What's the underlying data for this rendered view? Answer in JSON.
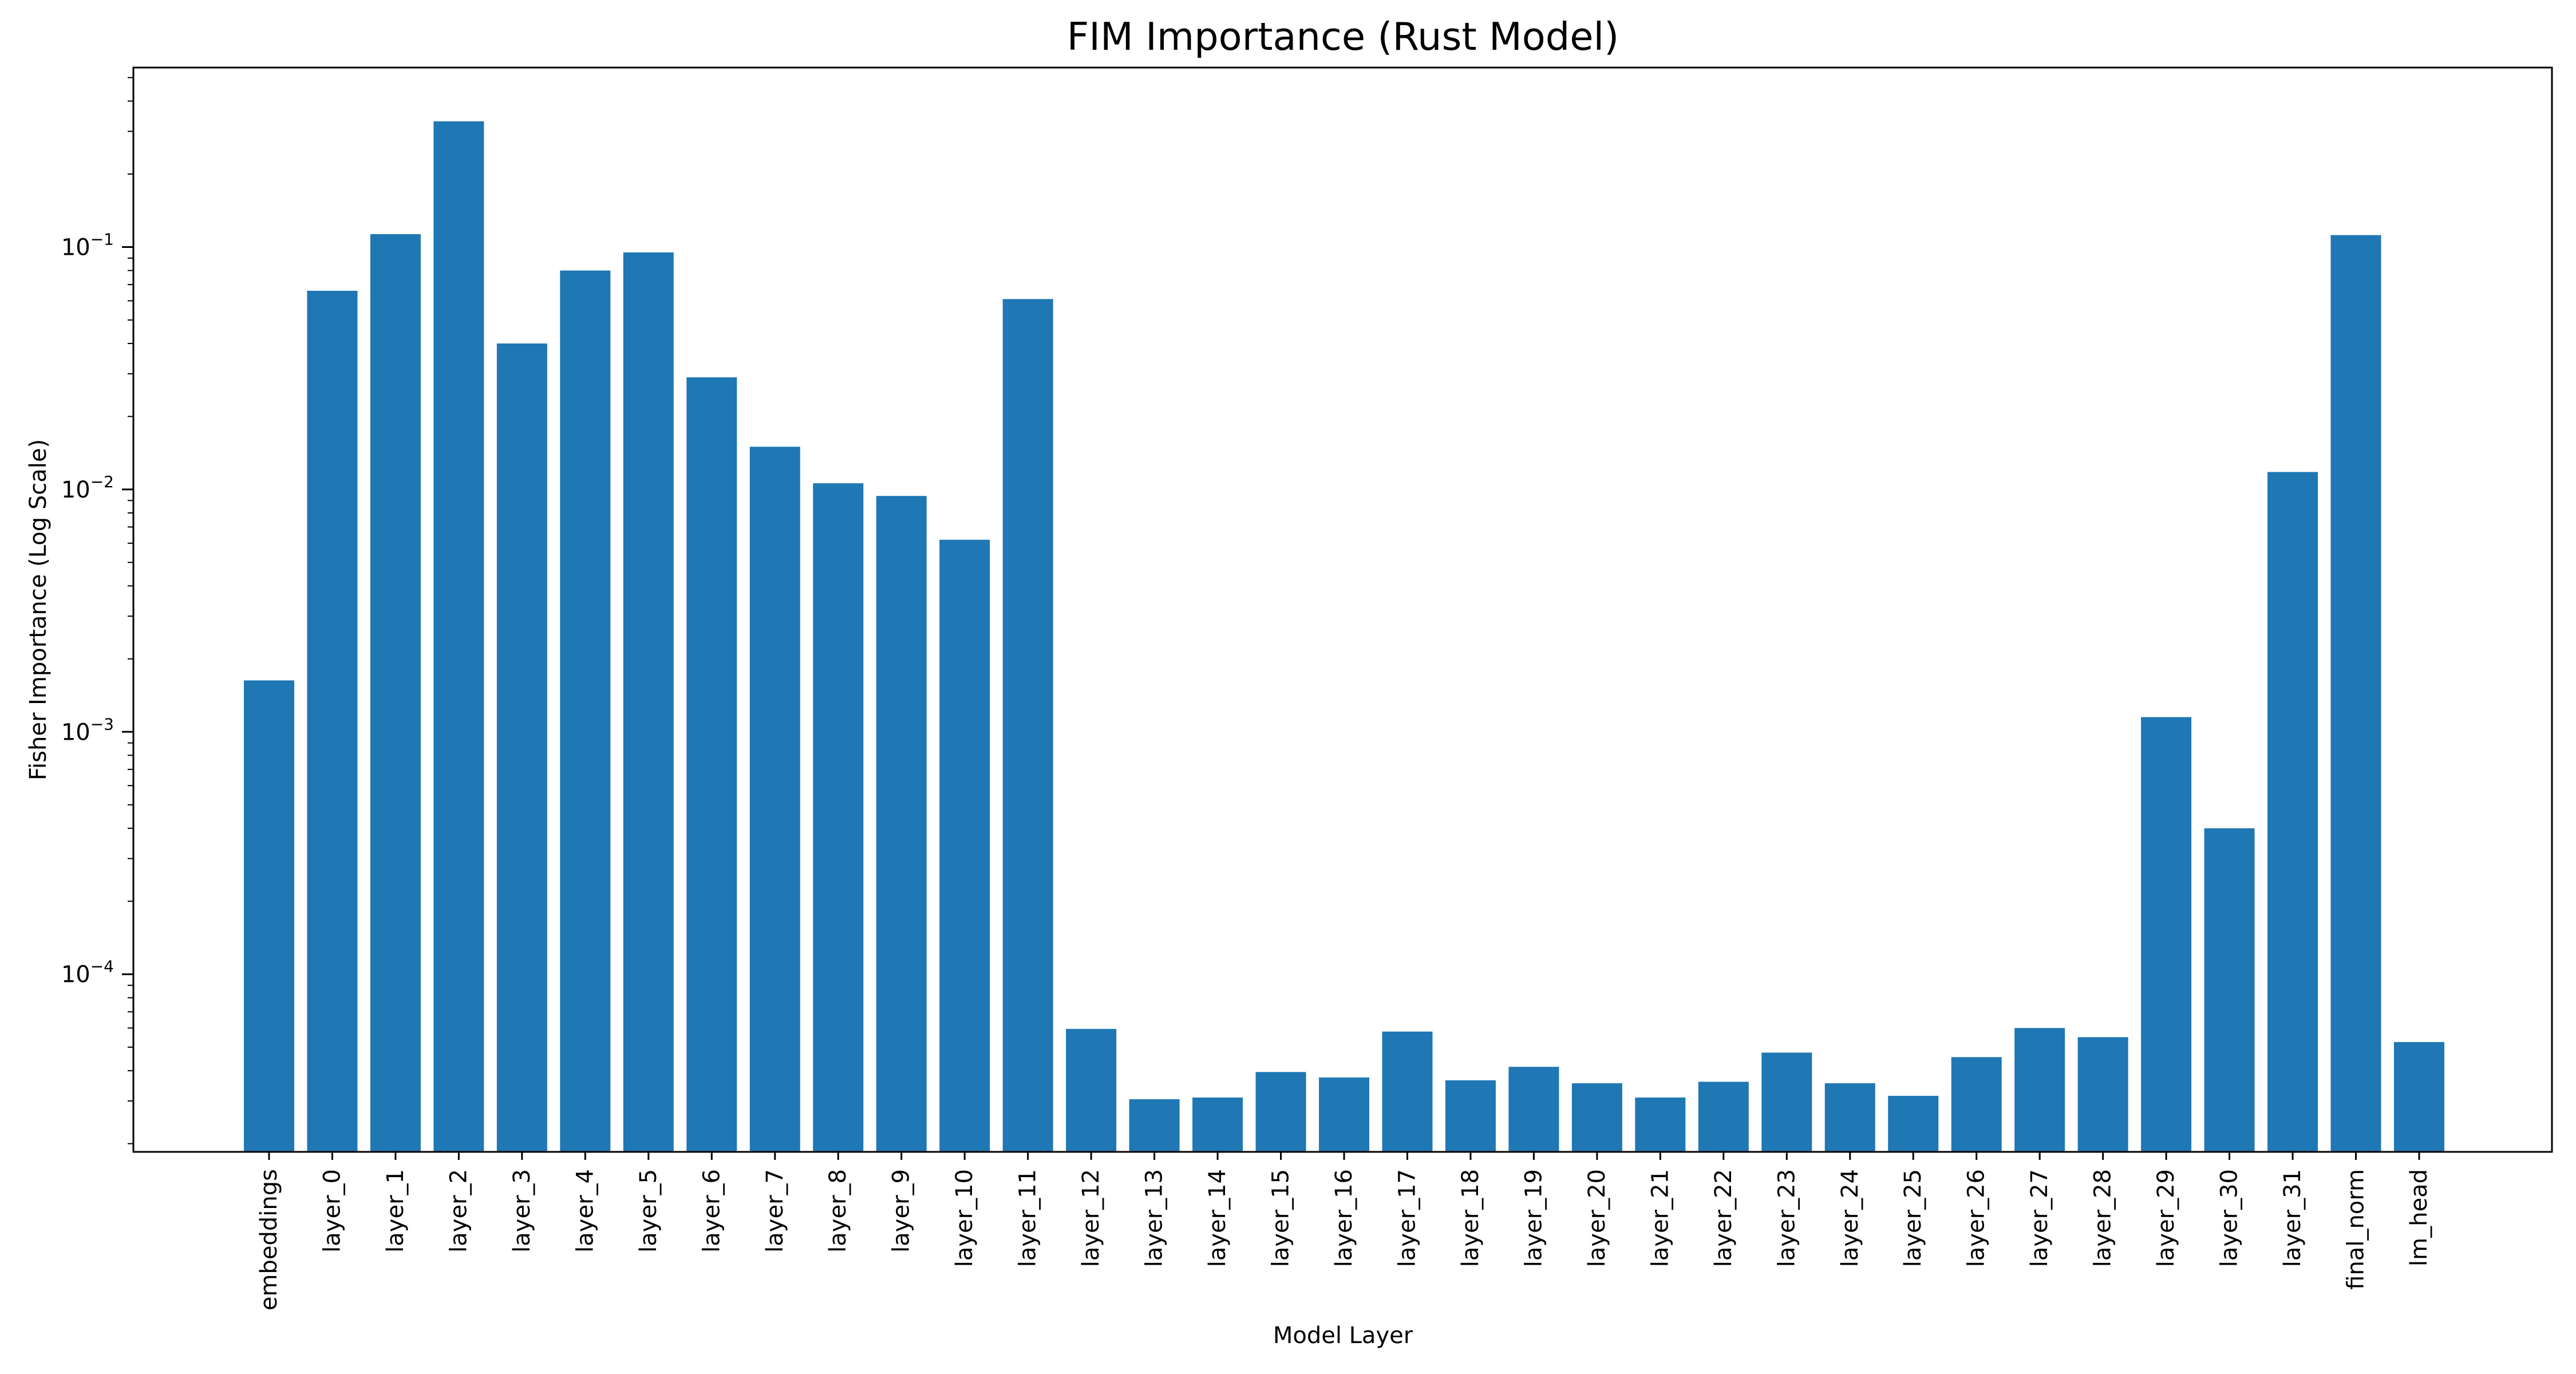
{
  "chart_data": {
    "type": "bar",
    "title": "FIM Importance (Rust Model)",
    "xlabel": "Model Layer",
    "ylabel": "Fisher Importance (Log Scale)",
    "yscale": "log",
    "ylim": [
      1.85e-05,
      0.55
    ],
    "yticks": [
      {
        "value": 0.0001,
        "base": "10",
        "exp": "−4"
      },
      {
        "value": 0.001,
        "base": "10",
        "exp": "−3"
      },
      {
        "value": 0.01,
        "base": "10",
        "exp": "−2"
      },
      {
        "value": 0.1,
        "base": "10",
        "exp": "−1"
      }
    ],
    "grid": false,
    "color": "#1f77b4",
    "categories": [
      "embeddings",
      "layer_0",
      "layer_1",
      "layer_2",
      "layer_3",
      "layer_4",
      "layer_5",
      "layer_6",
      "layer_7",
      "layer_8",
      "layer_9",
      "layer_10",
      "layer_11",
      "layer_12",
      "layer_13",
      "layer_14",
      "layer_15",
      "layer_16",
      "layer_17",
      "layer_18",
      "layer_19",
      "layer_20",
      "layer_21",
      "layer_22",
      "layer_23",
      "layer_24",
      "layer_25",
      "layer_26",
      "layer_27",
      "layer_28",
      "layer_29",
      "layer_30",
      "layer_31",
      "final_norm",
      "lm_head"
    ],
    "values": [
      0.00163,
      0.066,
      0.113,
      0.33,
      0.04,
      0.08,
      0.095,
      0.029,
      0.015,
      0.0106,
      0.0094,
      0.0062,
      0.061,
      5.95e-05,
      3.05e-05,
      3.1e-05,
      3.95e-05,
      3.75e-05,
      5.8e-05,
      3.65e-05,
      4.15e-05,
      3.55e-05,
      3.1e-05,
      3.6e-05,
      4.75e-05,
      3.55e-05,
      3.15e-05,
      4.55e-05,
      6e-05,
      5.5e-05,
      0.00115,
      0.0004,
      0.0118,
      0.112,
      5.25e-05
    ]
  }
}
